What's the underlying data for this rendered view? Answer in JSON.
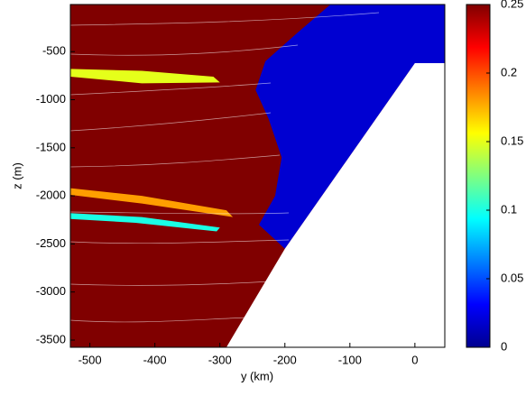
{
  "chart_data": {
    "type": "heatmap",
    "xlabel": "y (km)",
    "ylabel": "z (m)",
    "xlim": [
      -530,
      46
    ],
    "ylim": [
      -3575,
      -10
    ],
    "xticks": [
      -500,
      -400,
      -300,
      -200,
      -100,
      0
    ],
    "yticks": [
      -3500,
      -3000,
      -2500,
      -2000,
      -1500,
      -1000,
      -500
    ],
    "clim": [
      0,
      0.25
    ],
    "cticks": [
      0,
      0.05,
      0.1,
      0.15,
      0.2,
      0.25
    ],
    "regions": [
      {
        "value": 0.25,
        "points": [
          [
            -530,
            -10
          ],
          [
            46,
            -10
          ],
          [
            46,
            -3575
          ],
          [
            -530,
            -3575
          ]
        ]
      },
      {
        "value": 0.02,
        "points": [
          [
            -130,
            -10
          ],
          [
            -180,
            -300
          ],
          [
            -230,
            -600
          ],
          [
            -245,
            -900
          ],
          [
            -225,
            -1200
          ],
          [
            -205,
            -1600
          ],
          [
            -215,
            -2000
          ],
          [
            -240,
            -2300
          ],
          [
            -200,
            -2550
          ],
          [
            0,
            -620
          ],
          [
            46,
            -620
          ],
          [
            46,
            -10
          ]
        ]
      },
      {
        "value": 0.15,
        "points": [
          [
            -530,
            -680
          ],
          [
            -420,
            -700
          ],
          [
            -310,
            -760
          ],
          [
            -300,
            -820
          ],
          [
            -420,
            -830
          ],
          [
            -530,
            -760
          ]
        ]
      },
      {
        "value": 0.18,
        "points": [
          [
            -530,
            -1920
          ],
          [
            -420,
            -2000
          ],
          [
            -290,
            -2150
          ],
          [
            -280,
            -2220
          ],
          [
            -420,
            -2080
          ],
          [
            -530,
            -1990
          ]
        ]
      },
      {
        "value": 0.1,
        "points": [
          [
            -530,
            -2180
          ],
          [
            -420,
            -2220
          ],
          [
            -300,
            -2330
          ],
          [
            -305,
            -2370
          ],
          [
            -430,
            -2280
          ],
          [
            -530,
            -2240
          ]
        ]
      },
      {
        "value": null,
        "points": [
          [
            -290,
            -3575
          ],
          [
            -200,
            -2550
          ],
          [
            0,
            -620
          ],
          [
            46,
            -620
          ],
          [
            46,
            -3575
          ]
        ]
      }
    ]
  }
}
